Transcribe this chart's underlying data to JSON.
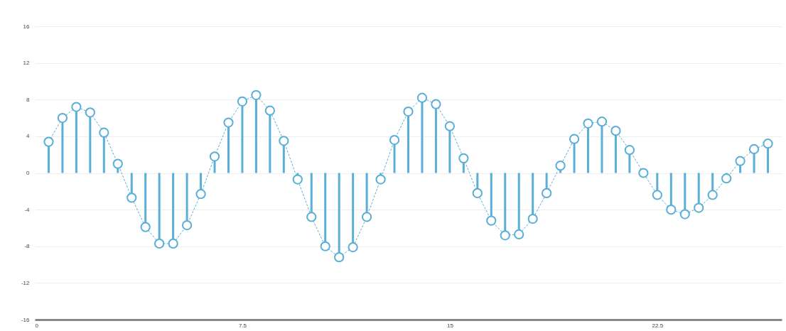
{
  "chart_data": {
    "type": "lollipop",
    "x": [
      0.5,
      1,
      1.5,
      2,
      2.5,
      3,
      3.5,
      4,
      4.5,
      5,
      5.5,
      6,
      6.5,
      7,
      7.5,
      8,
      8.5,
      9,
      9.5,
      10,
      10.5,
      11,
      11.5,
      12,
      12.5,
      13,
      13.5,
      14,
      14.5,
      15,
      15.5,
      16,
      16.5,
      17,
      17.5,
      18,
      18.5,
      19,
      19.5,
      20,
      20.5,
      21,
      21.5,
      22,
      22.5,
      23,
      23.5,
      24,
      24.5,
      25,
      25.5,
      26,
      26.5
    ],
    "series": [
      {
        "type": "line",
        "line_style": "dashed",
        "color": "#5aafd6",
        "values": [
          3.4,
          6.0,
          7.2,
          6.6,
          4.4,
          1.0,
          -2.7,
          -5.9,
          -7.7,
          -7.7,
          -5.7,
          -2.3,
          1.8,
          5.5,
          7.8,
          8.5,
          6.8,
          3.5,
          -0.7,
          -4.8,
          -8.0,
          -9.2,
          -8.1,
          -4.8,
          -0.7,
          3.6,
          6.7,
          8.2,
          7.5,
          5.1,
          1.6,
          -2.2,
          -5.2,
          -6.8,
          -6.7,
          -5.0,
          -2.2,
          0.8,
          3.7,
          5.4,
          5.6,
          4.6,
          2.5,
          0,
          -2.4,
          -4.0,
          -4.5,
          -3.8,
          -2.4,
          -0.6,
          1.3,
          2.6,
          3.2
        ]
      },
      {
        "marker": "circle",
        "color": "#5aafd6",
        "values": [
          3.4,
          6.0,
          7.2,
          6.6,
          4.4,
          1.0,
          -2.7,
          -5.9,
          -7.7,
          -7.7,
          -5.7,
          -2.3,
          1.8,
          5.5,
          7.8,
          8.5,
          6.8,
          3.5,
          -0.7,
          -4.8,
          -8.0,
          -9.2,
          -8.1,
          -4.8,
          -0.7,
          3.6,
          6.7,
          8.2,
          7.5,
          5.1,
          1.6,
          -2.2,
          -5.2,
          -6.8,
          -6.7,
          -5.0,
          -2.2,
          0.8,
          3.7,
          5.4,
          5.6,
          4.6,
          2.5,
          0,
          -2.4,
          -4.0,
          -4.5,
          -3.8,
          -2.4,
          -0.6,
          1.3,
          2.6,
          3.2
        ]
      }
    ],
    "xlim": [
      0,
      27
    ],
    "xticks": [
      0,
      7.5,
      15,
      22.5
    ],
    "ylim": [
      -16,
      16
    ],
    "yticks": [
      -16,
      -12,
      -8,
      -4,
      0,
      4,
      8,
      12,
      16
    ],
    "grid": "y"
  }
}
